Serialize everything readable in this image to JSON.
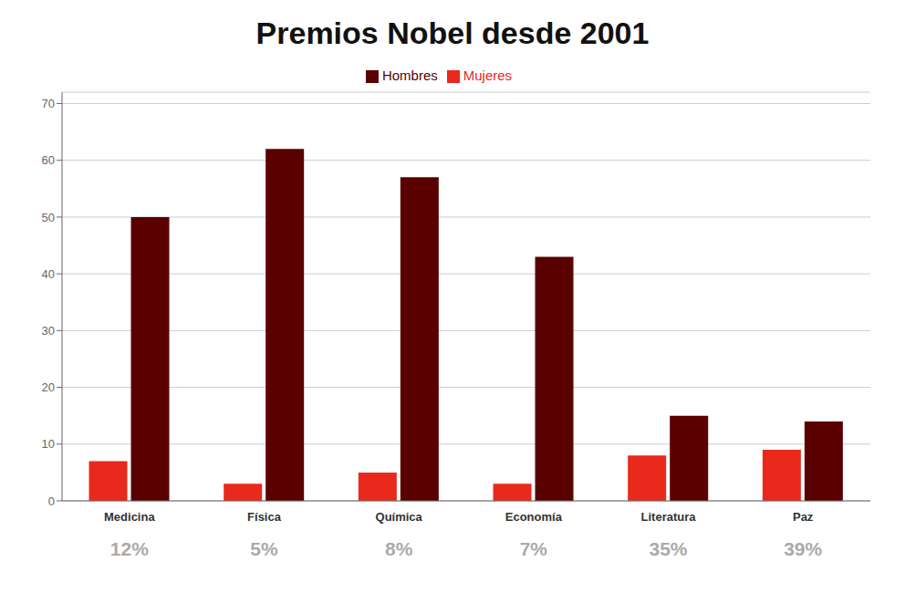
{
  "chart_data": {
    "type": "bar",
    "title": "Premios Nobel desde 2001",
    "categories": [
      "Medicina",
      "Física",
      "Química",
      "Economía",
      "Literatura",
      "Paz"
    ],
    "series": [
      {
        "name": "Mujeres",
        "color": "#e8291c",
        "values": [
          7,
          3,
          5,
          3,
          8,
          9
        ]
      },
      {
        "name": "Hombres",
        "color": "#5a0000",
        "values": [
          50,
          62,
          57,
          43,
          15,
          14
        ]
      }
    ],
    "annotations": [
      "12%",
      "5%",
      "8%",
      "7%",
      "35%",
      "39%"
    ],
    "ylim": [
      0,
      72
    ],
    "yticks": [
      0,
      10,
      20,
      30,
      40,
      50,
      60,
      70
    ],
    "grid": true,
    "legend": "top"
  }
}
